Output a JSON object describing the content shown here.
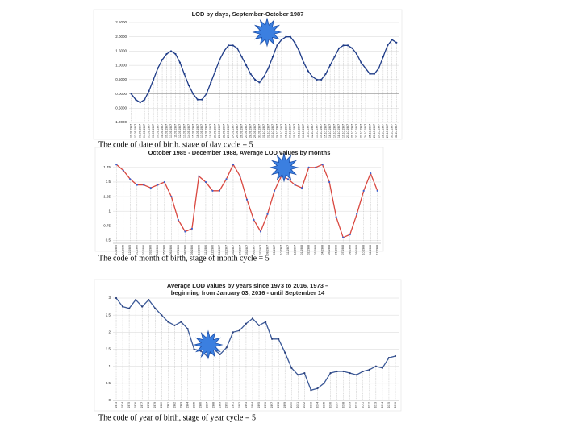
{
  "chart_data": [
    {
      "type": "line",
      "title": "LOD by days, September-October 1987",
      "annotation": "The code of date of birth, stage of day cycle = 5",
      "categories": [
        "01.09.1987",
        "02.09.1987",
        "03.09.1987",
        "04.09.1987",
        "05.09.1987",
        "06.09.1987",
        "07.09.1987",
        "08.09.1987",
        "09.09.1987",
        "10.09.1987",
        "11.09.1987",
        "12.09.1987",
        "13.09.1987",
        "14.09.1987",
        "15.09.1987",
        "16.09.1987",
        "17.09.1987",
        "18.09.1987",
        "19.09.1987",
        "20.09.1987",
        "21.09.1987",
        "22.09.1987",
        "23.09.1987",
        "24.09.1987",
        "25.09.1987",
        "26.09.1987",
        "27.09.1987",
        "28.09.1987",
        "29.09.1987",
        "30.09.1987",
        "01.10.1987",
        "02.10.1987",
        "03.10.1987",
        "04.10.1987",
        "05.10.1987",
        "06.10.1987",
        "07.10.1987",
        "08.10.1987",
        "09.10.1987",
        "10.10.1987",
        "11.10.1987",
        "12.10.1987",
        "13.10.1987",
        "14.10.1987",
        "15.10.1987",
        "16.10.1987",
        "17.10.1987",
        "18.10.1987",
        "19.10.1987",
        "20.10.1987",
        "21.10.1987",
        "22.10.1987",
        "23.10.1987",
        "24.10.1987",
        "25.10.1987",
        "26.10.1987",
        "27.10.1987",
        "28.10.1987",
        "29.10.1987",
        "30.10.1987",
        "31.10.1987"
      ],
      "values": [
        0.0,
        -0.2,
        -0.3,
        -0.2,
        0.1,
        0.5,
        0.9,
        1.2,
        1.4,
        1.5,
        1.4,
        1.1,
        0.7,
        0.3,
        0.0,
        -0.2,
        -0.2,
        0.0,
        0.4,
        0.8,
        1.2,
        1.5,
        1.7,
        1.7,
        1.6,
        1.3,
        1.0,
        0.7,
        0.5,
        0.4,
        0.6,
        0.9,
        1.3,
        1.7,
        1.9,
        2.0,
        2.0,
        1.8,
        1.5,
        1.1,
        0.8,
        0.6,
        0.5,
        0.5,
        0.7,
        1.0,
        1.3,
        1.6,
        1.7,
        1.7,
        1.6,
        1.4,
        1.1,
        0.9,
        0.7,
        0.7,
        0.9,
        1.3,
        1.7,
        1.9,
        1.8
      ],
      "color": "#1f3c88",
      "marker_color": "#1f3c88",
      "ylim": [
        -1,
        2.5
      ],
      "yticks": [
        {
          "value": -1,
          "label": "-1.0000"
        },
        {
          "value": -0.5,
          "label": "-0.5000"
        },
        {
          "value": 0,
          "label": "0.0000"
        },
        {
          "value": 0.5,
          "label": "0.5000"
        },
        {
          "value": 1,
          "label": "1.0000"
        },
        {
          "value": 1.5,
          "label": "1.5000"
        },
        {
          "value": 2,
          "label": "2.0000"
        },
        {
          "value": 2.5,
          "label": "2.5000"
        }
      ],
      "grid": true
    },
    {
      "type": "line",
      "title": "October 1985 - December 1988, Average LOD values by months",
      "annotation": "The code of month of birth, stage of month cycle = 5",
      "categories": [
        "10.1985",
        "11.1985",
        "12.1985",
        "01.1986",
        "02.1986",
        "03.1986",
        "04.1986",
        "05.1986",
        "06.1986",
        "07.1986",
        "08.1986",
        "09.1986",
        "10.1986",
        "11.1986",
        "12.1986",
        "01.1987",
        "02.1987",
        "03.1987",
        "04.1987",
        "05.1987",
        "06.1987",
        "07.1987",
        "08.1987",
        "09.1987",
        "10.1987",
        "11.1987",
        "12.1987",
        "01.1988",
        "02.1988",
        "03.1988",
        "04.1988",
        "05.1988",
        "06.1988",
        "07.1988",
        "08.1988",
        "09.1988",
        "10.1988",
        "11.1988",
        "12.1988"
      ],
      "values": [
        1.8,
        1.7,
        1.55,
        1.45,
        1.45,
        1.4,
        1.45,
        1.5,
        1.25,
        0.85,
        0.65,
        0.7,
        1.6,
        1.5,
        1.35,
        1.35,
        1.55,
        1.8,
        1.6,
        1.2,
        0.85,
        0.65,
        0.95,
        1.35,
        1.6,
        1.55,
        1.45,
        1.4,
        1.75,
        1.75,
        1.8,
        1.5,
        0.9,
        0.55,
        0.6,
        0.95,
        1.35,
        1.65,
        1.35
      ],
      "color": "#d9473f",
      "marker_color": "#3a5fcd",
      "ylim": [
        0.45,
        1.9
      ],
      "yticks": [
        0.5,
        0.75,
        1,
        1.25,
        1.5,
        1.75
      ],
      "grid": true
    },
    {
      "type": "line",
      "title": [
        "Average LOD values by years since 1973 to 2016, 1973 –",
        "beginning from January 03, 2016 - until September 14"
      ],
      "annotation": "The code of year of birth, stage of year cycle = 5",
      "categories": [
        "1973",
        "1974",
        "1975",
        "1976",
        "1977",
        "1978",
        "1979",
        "1980",
        "1981",
        "1982",
        "1983",
        "1984",
        "1985",
        "1986",
        "1987",
        "1988",
        "1989",
        "1990",
        "1991",
        "1992",
        "1993",
        "1994",
        "1995",
        "1996",
        "1997",
        "1998",
        "1999",
        "2000",
        "2001",
        "2002",
        "2003",
        "2004",
        "2005",
        "2006",
        "2007",
        "2008",
        "2009",
        "2010",
        "2011",
        "2012",
        "2013",
        "2014",
        "2015",
        "2016"
      ],
      "values": [
        3.0,
        2.75,
        2.7,
        2.95,
        2.75,
        2.95,
        2.7,
        2.5,
        2.3,
        2.2,
        2.3,
        2.1,
        1.5,
        1.45,
        1.3,
        1.5,
        1.35,
        1.55,
        2.0,
        2.05,
        2.25,
        2.4,
        2.2,
        2.3,
        1.8,
        1.8,
        1.4,
        0.95,
        0.75,
        0.8,
        0.3,
        0.35,
        0.5,
        0.8,
        0.85,
        0.85,
        0.8,
        0.75,
        0.85,
        0.9,
        1.0,
        0.95,
        1.25,
        1.3
      ],
      "color": "#3b5998",
      "marker_color": "#2a3f7a",
      "ylim": [
        0,
        3
      ],
      "yticks": [
        0,
        0.5,
        1,
        1.5,
        2,
        2.5,
        3
      ],
      "grid": true
    }
  ]
}
